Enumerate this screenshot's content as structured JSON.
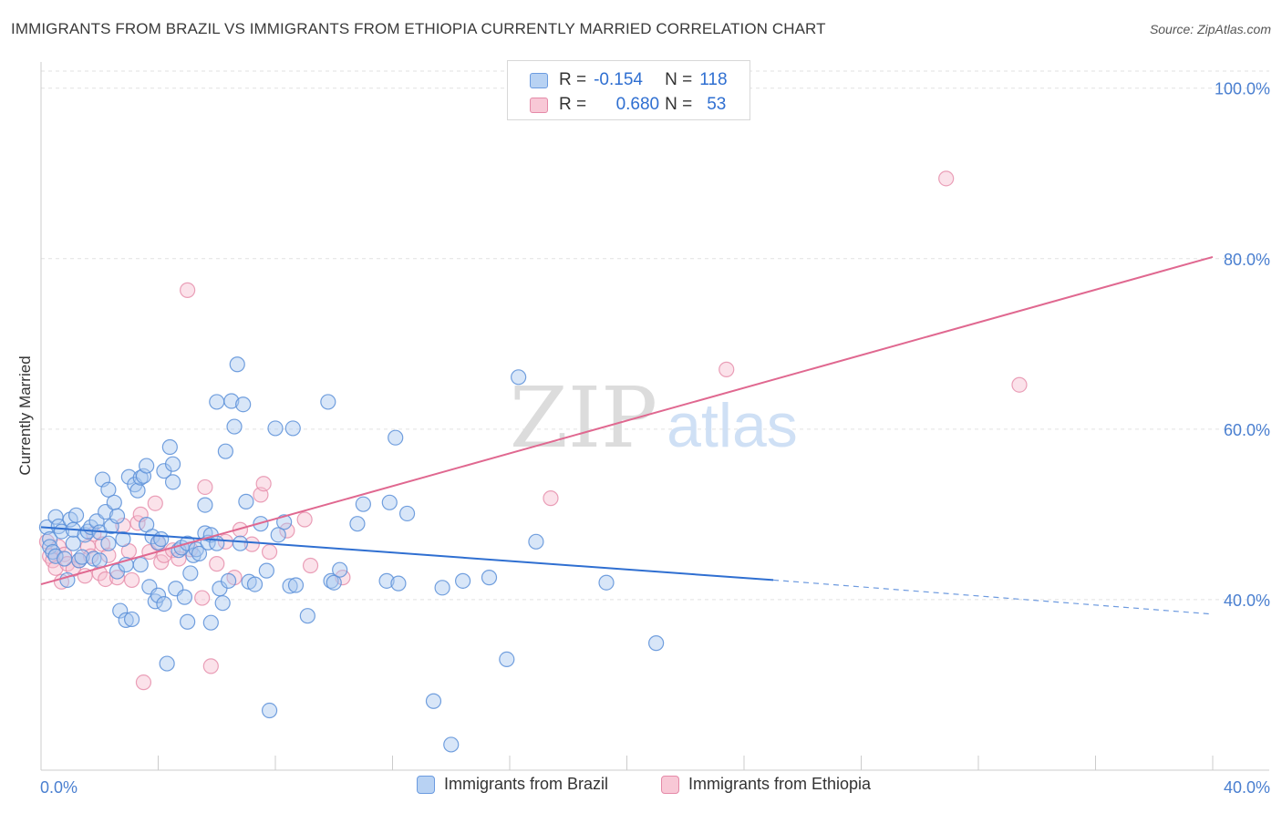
{
  "title": "IMMIGRANTS FROM BRAZIL VS IMMIGRANTS FROM ETHIOPIA CURRENTLY MARRIED CORRELATION CHART",
  "source": "Source: ZipAtlas.com",
  "watermark": {
    "zip": "ZIP",
    "atlas": "atlas"
  },
  "legend": {
    "rows": [
      {
        "r_label": "R =",
        "r_value": "-0.154",
        "n_label": "N =",
        "n_value": "118"
      },
      {
        "r_label": "R =",
        "r_value": "0.680",
        "n_label": "N =",
        "n_value": "53"
      }
    ]
  },
  "bottom_legend": {
    "series_a": "Immigrants from Brazil",
    "series_b": "Immigrants from Ethiopia"
  },
  "colors": {
    "brazil_fill": "#a9c8f0",
    "brazil_stroke": "#5a8fd8",
    "brazil_line": "#2f6fd1",
    "ethiopia_fill": "#f6bfd0",
    "ethiopia_stroke": "#e58aa8",
    "ethiopia_line": "#e06890",
    "axis_text": "#4a7fd0"
  },
  "chart_data": {
    "type": "scatter",
    "title": "IMMIGRANTS FROM BRAZIL VS IMMIGRANTS FROM ETHIOPIA CURRENTLY MARRIED CORRELATION CHART",
    "xlabel": "",
    "ylabel": "Currently Married",
    "xlim": [
      0,
      40
    ],
    "ylim": [
      20,
      102
    ],
    "x_tick_labels": [
      "0.0%",
      "40.0%"
    ],
    "y_ticks": [
      40,
      60,
      80,
      100
    ],
    "y_tick_labels": [
      "40.0%",
      "60.0%",
      "80.0%",
      "100.0%"
    ],
    "grid": true,
    "legend_position": "top-center",
    "series": [
      {
        "name": "Immigrants from Brazil",
        "r": -0.154,
        "n": 118,
        "trend": {
          "x0": 0,
          "y0": 48.5,
          "x1": 25,
          "y1": 42.3,
          "dashed_to_x": 40,
          "dashed_to_y": 38.3
        },
        "points": [
          [
            0.2,
            48.5
          ],
          [
            0.3,
            47.1
          ],
          [
            0.3,
            46.2
          ],
          [
            0.4,
            45.6
          ],
          [
            0.5,
            49.7
          ],
          [
            0.5,
            45.1
          ],
          [
            0.6,
            48.6
          ],
          [
            0.7,
            48.0
          ],
          [
            0.8,
            44.8
          ],
          [
            0.9,
            42.3
          ],
          [
            1.0,
            49.4
          ],
          [
            1.1,
            46.6
          ],
          [
            1.1,
            48.2
          ],
          [
            1.2,
            49.9
          ],
          [
            1.3,
            44.6
          ],
          [
            1.4,
            45.0
          ],
          [
            1.5,
            47.6
          ],
          [
            1.6,
            48.0
          ],
          [
            1.7,
            48.5
          ],
          [
            1.8,
            44.8
          ],
          [
            1.9,
            49.2
          ],
          [
            2.0,
            47.9
          ],
          [
            2.0,
            44.6
          ],
          [
            2.1,
            54.1
          ],
          [
            2.2,
            50.3
          ],
          [
            2.3,
            46.6
          ],
          [
            2.3,
            52.9
          ],
          [
            2.4,
            48.6
          ],
          [
            2.5,
            51.4
          ],
          [
            2.6,
            43.3
          ],
          [
            2.6,
            49.8
          ],
          [
            2.7,
            38.7
          ],
          [
            2.8,
            47.1
          ],
          [
            2.9,
            37.6
          ],
          [
            2.9,
            44.1
          ],
          [
            3.0,
            54.4
          ],
          [
            3.1,
            37.7
          ],
          [
            3.2,
            53.5
          ],
          [
            3.3,
            52.8
          ],
          [
            3.4,
            44.1
          ],
          [
            3.4,
            54.3
          ],
          [
            3.5,
            54.5
          ],
          [
            3.6,
            55.7
          ],
          [
            3.6,
            48.8
          ],
          [
            3.7,
            41.5
          ],
          [
            3.8,
            47.4
          ],
          [
            3.9,
            39.8
          ],
          [
            4.0,
            40.5
          ],
          [
            4.0,
            46.7
          ],
          [
            4.1,
            47.1
          ],
          [
            4.2,
            39.5
          ],
          [
            4.2,
            55.1
          ],
          [
            4.3,
            32.5
          ],
          [
            4.4,
            57.9
          ],
          [
            4.5,
            53.8
          ],
          [
            4.5,
            55.9
          ],
          [
            4.6,
            41.3
          ],
          [
            4.7,
            45.8
          ],
          [
            4.8,
            46.1
          ],
          [
            4.9,
            40.3
          ],
          [
            5.0,
            37.4
          ],
          [
            5.0,
            46.6
          ],
          [
            5.1,
            43.1
          ],
          [
            5.2,
            45.2
          ],
          [
            5.3,
            45.9
          ],
          [
            5.4,
            45.4
          ],
          [
            5.6,
            51.1
          ],
          [
            5.6,
            47.8
          ],
          [
            5.7,
            46.7
          ],
          [
            5.8,
            37.3
          ],
          [
            5.8,
            47.6
          ],
          [
            6.0,
            46.6
          ],
          [
            6.0,
            63.2
          ],
          [
            6.1,
            41.3
          ],
          [
            6.2,
            39.6
          ],
          [
            6.3,
            57.4
          ],
          [
            6.4,
            42.2
          ],
          [
            6.5,
            63.3
          ],
          [
            6.6,
            60.3
          ],
          [
            6.7,
            67.6
          ],
          [
            6.8,
            46.6
          ],
          [
            6.9,
            62.9
          ],
          [
            7.0,
            51.5
          ],
          [
            7.1,
            42.1
          ],
          [
            7.3,
            41.8
          ],
          [
            7.5,
            48.9
          ],
          [
            7.7,
            43.4
          ],
          [
            7.8,
            27.0
          ],
          [
            8.0,
            60.1
          ],
          [
            8.1,
            47.6
          ],
          [
            8.3,
            49.1
          ],
          [
            8.5,
            41.6
          ],
          [
            8.6,
            60.1
          ],
          [
            8.7,
            41.7
          ],
          [
            9.1,
            38.1
          ],
          [
            9.8,
            63.2
          ],
          [
            9.9,
            42.2
          ],
          [
            10.0,
            42.0
          ],
          [
            10.2,
            43.5
          ],
          [
            10.8,
            48.9
          ],
          [
            11.0,
            51.2
          ],
          [
            11.8,
            42.2
          ],
          [
            11.9,
            51.4
          ],
          [
            12.1,
            59.0
          ],
          [
            12.2,
            41.9
          ],
          [
            12.5,
            50.1
          ],
          [
            13.4,
            28.1
          ],
          [
            13.7,
            41.4
          ],
          [
            14.0,
            23.0
          ],
          [
            14.4,
            42.2
          ],
          [
            15.3,
            42.6
          ],
          [
            15.9,
            33.0
          ],
          [
            16.3,
            66.1
          ],
          [
            16.9,
            46.8
          ],
          [
            19.3,
            42.0
          ],
          [
            21.0,
            34.9
          ]
        ]
      },
      {
        "name": "Immigrants from Ethiopia",
        "r": 0.68,
        "n": 53,
        "trend": {
          "x0": 0,
          "y0": 41.8,
          "x1": 40,
          "y1": 80.2
        },
        "points": [
          [
            0.2,
            46.8
          ],
          [
            0.3,
            45.1
          ],
          [
            0.4,
            44.6
          ],
          [
            0.5,
            43.7
          ],
          [
            0.6,
            46.2
          ],
          [
            0.7,
            42.1
          ],
          [
            0.8,
            45.3
          ],
          [
            0.9,
            44.2
          ],
          [
            1.1,
            43.6
          ],
          [
            1.3,
            44.6
          ],
          [
            1.5,
            42.8
          ],
          [
            1.6,
            46.2
          ],
          [
            1.7,
            45.1
          ],
          [
            1.8,
            47.7
          ],
          [
            2.0,
            43.1
          ],
          [
            2.1,
            46.5
          ],
          [
            2.2,
            42.4
          ],
          [
            2.3,
            45.2
          ],
          [
            2.6,
            42.6
          ],
          [
            2.8,
            48.7
          ],
          [
            3.0,
            45.7
          ],
          [
            3.1,
            42.3
          ],
          [
            3.3,
            49.0
          ],
          [
            3.4,
            50.0
          ],
          [
            3.5,
            30.3
          ],
          [
            3.7,
            45.6
          ],
          [
            3.9,
            51.3
          ],
          [
            4.0,
            46.6
          ],
          [
            4.1,
            44.4
          ],
          [
            4.2,
            45.2
          ],
          [
            4.5,
            45.8
          ],
          [
            4.7,
            44.8
          ],
          [
            5.0,
            76.3
          ],
          [
            5.1,
            45.9
          ],
          [
            5.5,
            40.2
          ],
          [
            5.6,
            53.2
          ],
          [
            5.8,
            32.2
          ],
          [
            6.0,
            44.2
          ],
          [
            6.3,
            46.8
          ],
          [
            6.6,
            42.6
          ],
          [
            6.8,
            48.2
          ],
          [
            7.2,
            46.5
          ],
          [
            7.5,
            52.3
          ],
          [
            7.6,
            53.6
          ],
          [
            7.8,
            45.6
          ],
          [
            8.4,
            48.1
          ],
          [
            9.0,
            49.4
          ],
          [
            9.2,
            44.0
          ],
          [
            10.3,
            42.6
          ],
          [
            17.4,
            51.9
          ],
          [
            23.4,
            67.0
          ],
          [
            30.9,
            89.4
          ],
          [
            33.4,
            65.2
          ]
        ]
      }
    ]
  }
}
